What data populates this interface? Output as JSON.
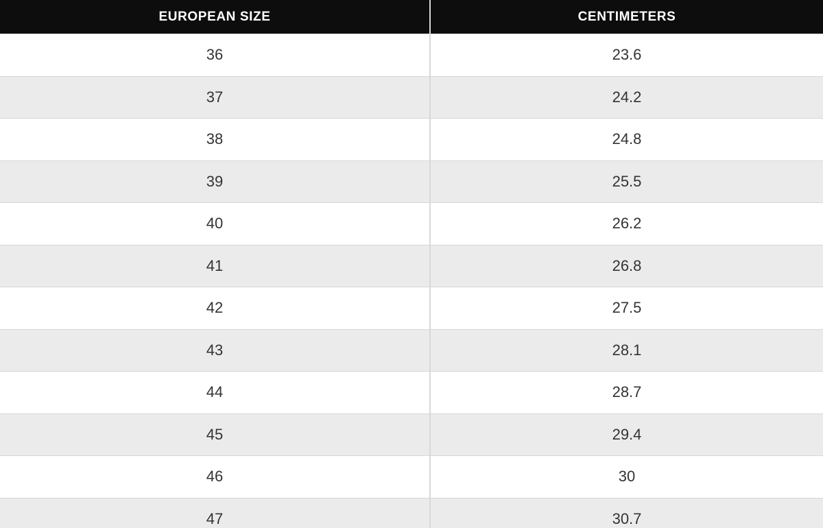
{
  "table": {
    "columns": [
      {
        "label": "EUROPEAN SIZE"
      },
      {
        "label": "CENTIMETERS"
      }
    ],
    "rows": [
      {
        "eu": "36",
        "cm": "23.6"
      },
      {
        "eu": "37",
        "cm": "24.2"
      },
      {
        "eu": "38",
        "cm": "24.8"
      },
      {
        "eu": "39",
        "cm": "25.5"
      },
      {
        "eu": "40",
        "cm": "26.2"
      },
      {
        "eu": "41",
        "cm": "26.8"
      },
      {
        "eu": "42",
        "cm": "27.5"
      },
      {
        "eu": "43",
        "cm": "28.1"
      },
      {
        "eu": "44",
        "cm": "28.7"
      },
      {
        "eu": "45",
        "cm": "29.4"
      },
      {
        "eu": "46",
        "cm": "30"
      },
      {
        "eu": "47",
        "cm": "30.7"
      }
    ]
  },
  "colors": {
    "header_bg": "#0d0d0d",
    "header_text": "#ffffff",
    "row_alt_bg": "#ebebeb",
    "border": "#d6d6d6",
    "cell_text": "#333333"
  }
}
